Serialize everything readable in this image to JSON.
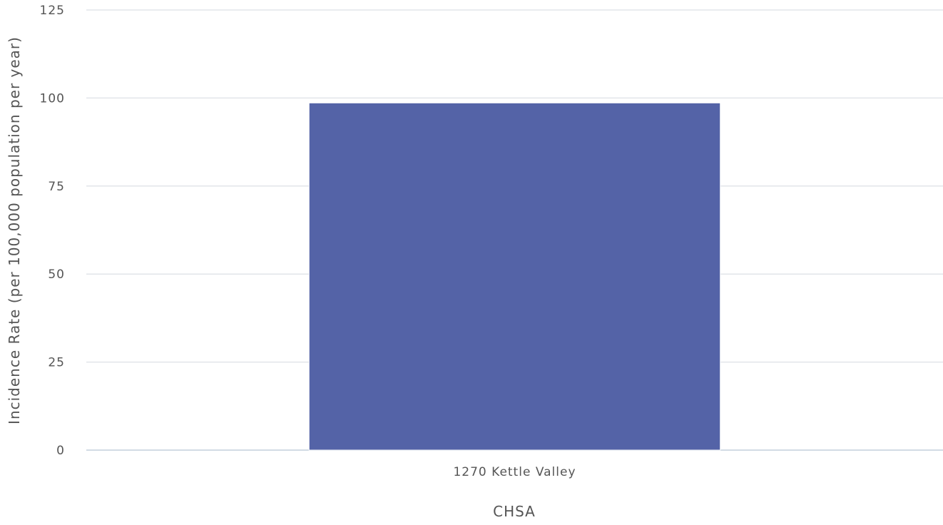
{
  "chart_data": {
    "type": "bar",
    "title": "",
    "xlabel": "CHSA",
    "ylabel": "Incidence Rate (per 100,000 population per year)",
    "categories": [
      "1270 Kettle Valley"
    ],
    "series": [
      {
        "values": [
          98.6
        ]
      }
    ],
    "ylim": [
      0,
      125
    ],
    "yticks": [
      0,
      25,
      50,
      75,
      100,
      125
    ],
    "grid": true,
    "legend": "none",
    "bar_color": "#5463a7"
  }
}
